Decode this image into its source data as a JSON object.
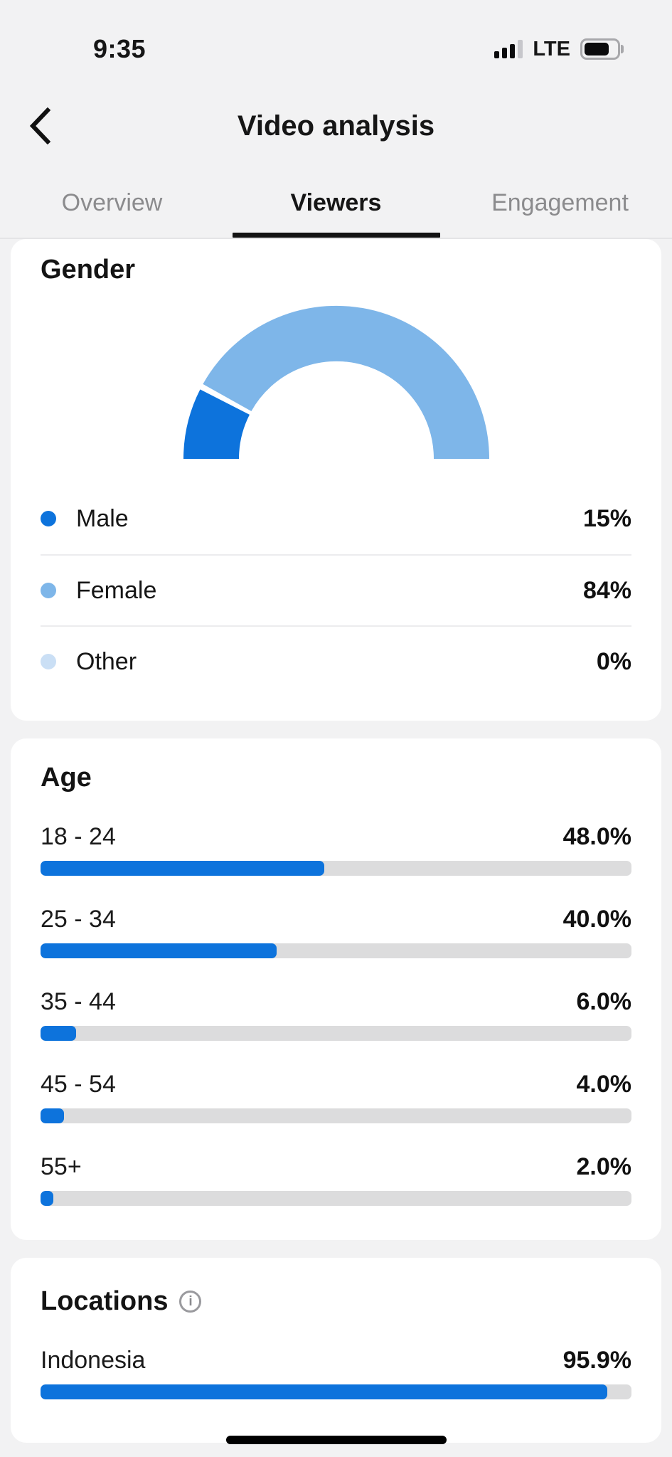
{
  "status_bar": {
    "time": "9:35",
    "network": "LTE"
  },
  "header": {
    "title": "Video analysis"
  },
  "tabs": {
    "active": "Viewers",
    "items": [
      {
        "label": "Overview"
      },
      {
        "label": "Viewers"
      },
      {
        "label": "Engagement"
      }
    ]
  },
  "colors": {
    "accent_blue": "#0d73dc",
    "light_blue": "#7eb6e9",
    "pale_blue": "#cadff5",
    "track_gray": "#dcdcdd",
    "page_bg": "#f2f2f3"
  },
  "gender": {
    "title": "Gender",
    "rows": [
      {
        "label": "Male",
        "value": "15%",
        "color": "#0d73dc"
      },
      {
        "label": "Female",
        "value": "84%",
        "color": "#7eb6e9"
      },
      {
        "label": "Other",
        "value": "0%",
        "color": "#cadff5"
      }
    ]
  },
  "age": {
    "title": "Age",
    "rows": [
      {
        "label": "18 - 24",
        "value": "48.0%",
        "pct": 48
      },
      {
        "label": "25 - 34",
        "value": "40.0%",
        "pct": 40
      },
      {
        "label": "35 - 44",
        "value": "6.0%",
        "pct": 6
      },
      {
        "label": "45 - 54",
        "value": "4.0%",
        "pct": 4
      },
      {
        "label": "55+",
        "value": "2.0%",
        "pct": 2
      }
    ]
  },
  "locations": {
    "title": "Locations",
    "rows": [
      {
        "label": "Indonesia",
        "value": "95.9%",
        "pct": 95.9
      }
    ]
  },
  "chart_data": [
    {
      "type": "pie",
      "variant": "half-donut",
      "title": "Gender",
      "unit": "%",
      "series": [
        {
          "name": "Male",
          "value": 15,
          "color": "#0d73dc"
        },
        {
          "name": "Female",
          "value": 84,
          "color": "#7eb6e9"
        },
        {
          "name": "Other",
          "value": 0,
          "color": "#cadff5"
        }
      ],
      "legend_position": "below"
    },
    {
      "type": "bar",
      "orientation": "horizontal",
      "title": "Age",
      "categories": [
        "18 - 24",
        "25 - 34",
        "35 - 44",
        "45 - 54",
        "55+"
      ],
      "values": [
        48.0,
        40.0,
        6.0,
        4.0,
        2.0
      ],
      "unit": "%",
      "xlim": [
        0,
        100
      ],
      "grid": false
    },
    {
      "type": "bar",
      "orientation": "horizontal",
      "title": "Locations",
      "categories": [
        "Indonesia"
      ],
      "values": [
        95.9
      ],
      "unit": "%",
      "xlim": [
        0,
        100
      ],
      "grid": false
    }
  ]
}
